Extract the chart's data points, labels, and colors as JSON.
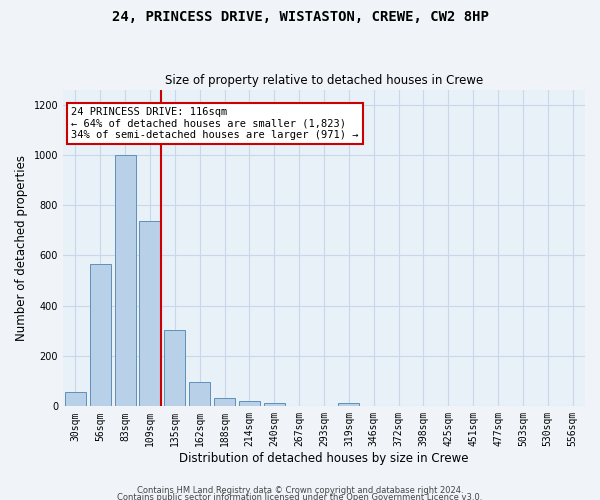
{
  "title": "24, PRINCESS DRIVE, WISTASTON, CREWE, CW2 8HP",
  "subtitle": "Size of property relative to detached houses in Crewe",
  "xlabel": "Distribution of detached houses by size in Crewe",
  "ylabel": "Number of detached properties",
  "bar_color": "#b8d0e8",
  "bar_edge_color": "#6090b8",
  "bar_categories": [
    "30sqm",
    "56sqm",
    "83sqm",
    "109sqm",
    "135sqm",
    "162sqm",
    "188sqm",
    "214sqm",
    "240sqm",
    "267sqm",
    "293sqm",
    "319sqm",
    "346sqm",
    "372sqm",
    "398sqm",
    "425sqm",
    "451sqm",
    "477sqm",
    "503sqm",
    "530sqm",
    "556sqm"
  ],
  "bar_values": [
    57,
    568,
    1000,
    737,
    302,
    95,
    35,
    22,
    13,
    0,
    0,
    13,
    0,
    0,
    0,
    0,
    0,
    0,
    0,
    0,
    0
  ],
  "property_line_x": 3.43,
  "property_line_color": "#cc0000",
  "annotation_text": "24 PRINCESS DRIVE: 116sqm\n← 64% of detached houses are smaller (1,823)\n34% of semi-detached houses are larger (971) →",
  "annotation_box_color": "#ffffff",
  "annotation_box_edge": "#cc0000",
  "ylim": [
    0,
    1260
  ],
  "yticks": [
    0,
    200,
    400,
    600,
    800,
    1000,
    1200
  ],
  "grid_color": "#c8d8e8",
  "background_color": "#e8f0f8",
  "fig_background": "#f0f4f8",
  "footer1": "Contains HM Land Registry data © Crown copyright and database right 2024.",
  "footer2": "Contains public sector information licensed under the Open Government Licence v3.0."
}
